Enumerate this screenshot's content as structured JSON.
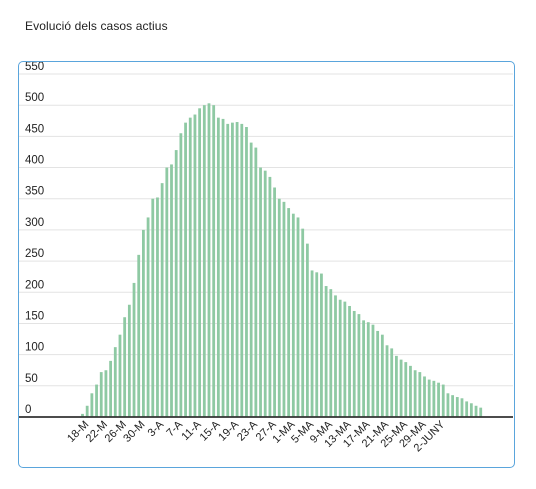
{
  "title": "Evolució dels casos actius",
  "chart_data": {
    "type": "bar",
    "color": "#8ec9a3",
    "axis_color": "#333333",
    "grid_color": "#e3e3e3",
    "grid": true,
    "ylim": [
      0,
      550
    ],
    "yticks": [
      0,
      50,
      100,
      150,
      200,
      250,
      300,
      350,
      400,
      450,
      500,
      550
    ],
    "xtick_labels": [
      "18-M",
      "22-M",
      "26-M",
      "30-M",
      "3-A",
      "7-A",
      "11-A",
      "15-A",
      "19-A",
      "23-A",
      "27-A",
      "1-MA",
      "5-MA",
      "9-MA",
      "13-MA",
      "17-MA",
      "21-MA",
      "25-MA",
      "29-MA",
      "2-JUNY"
    ],
    "values": [
      5,
      18,
      38,
      52,
      72,
      75,
      90,
      112,
      132,
      160,
      180,
      215,
      260,
      300,
      320,
      350,
      352,
      375,
      400,
      405,
      428,
      455,
      472,
      480,
      485,
      495,
      500,
      503,
      500,
      480,
      478,
      470,
      472,
      473,
      470,
      465,
      440,
      432,
      400,
      395,
      385,
      368,
      350,
      345,
      335,
      326,
      320,
      302,
      278,
      235,
      232,
      230,
      210,
      205,
      195,
      188,
      185,
      178,
      170,
      165,
      155,
      152,
      148,
      138,
      132,
      115,
      110,
      98,
      92,
      88,
      82,
      75,
      72,
      65,
      60,
      58,
      55,
      52,
      38,
      35,
      32,
      30,
      25,
      22,
      18,
      15
    ]
  }
}
